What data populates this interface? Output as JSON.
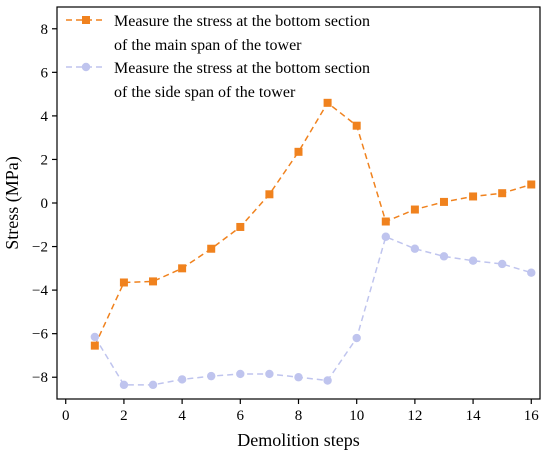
{
  "chart_data": {
    "type": "line",
    "title": "",
    "xlabel": "Demolition steps",
    "ylabel": "Stress (MPa)",
    "xlim": [
      -0.3,
      16.3
    ],
    "ylim": [
      -9,
      9
    ],
    "xticks": [
      0,
      2,
      4,
      6,
      8,
      10,
      12,
      14,
      16
    ],
    "yticks": [
      -8,
      -6,
      -4,
      -2,
      0,
      2,
      4,
      6,
      8
    ],
    "grid": false,
    "legend_position": "top-left",
    "series": [
      {
        "name": "Measure the stress at the bottom section of the main span of the tower",
        "legend_lines": [
          "Measure the stress at the bottom section",
          "of the main span of the tower"
        ],
        "color": "#F0821E",
        "marker": "square",
        "line_style": "dashed",
        "x": [
          1,
          2,
          3,
          4,
          5,
          6,
          7,
          8,
          9,
          10,
          11,
          12,
          13,
          14,
          15,
          16
        ],
        "y": [
          -6.55,
          -3.65,
          -3.6,
          -3.0,
          -2.1,
          -1.1,
          0.4,
          2.35,
          4.6,
          3.55,
          -0.85,
          -0.3,
          0.05,
          0.3,
          0.45,
          0.85
        ]
      },
      {
        "name": "Measure the stress at the bottom section of the side span of the tower",
        "legend_lines": [
          "Measure the stress at the bottom section",
          "of the side span of the tower"
        ],
        "color": "#BFC4EE",
        "marker": "circle",
        "line_style": "dashed",
        "x": [
          1,
          2,
          3,
          4,
          5,
          6,
          7,
          8,
          9,
          10,
          11,
          12,
          13,
          14,
          15,
          16
        ],
        "y": [
          -6.15,
          -8.35,
          -8.35,
          -8.1,
          -7.95,
          -7.85,
          -7.85,
          -8.0,
          -8.15,
          -6.2,
          -1.55,
          -2.1,
          -2.45,
          -2.65,
          -2.8,
          -3.2
        ]
      }
    ]
  }
}
